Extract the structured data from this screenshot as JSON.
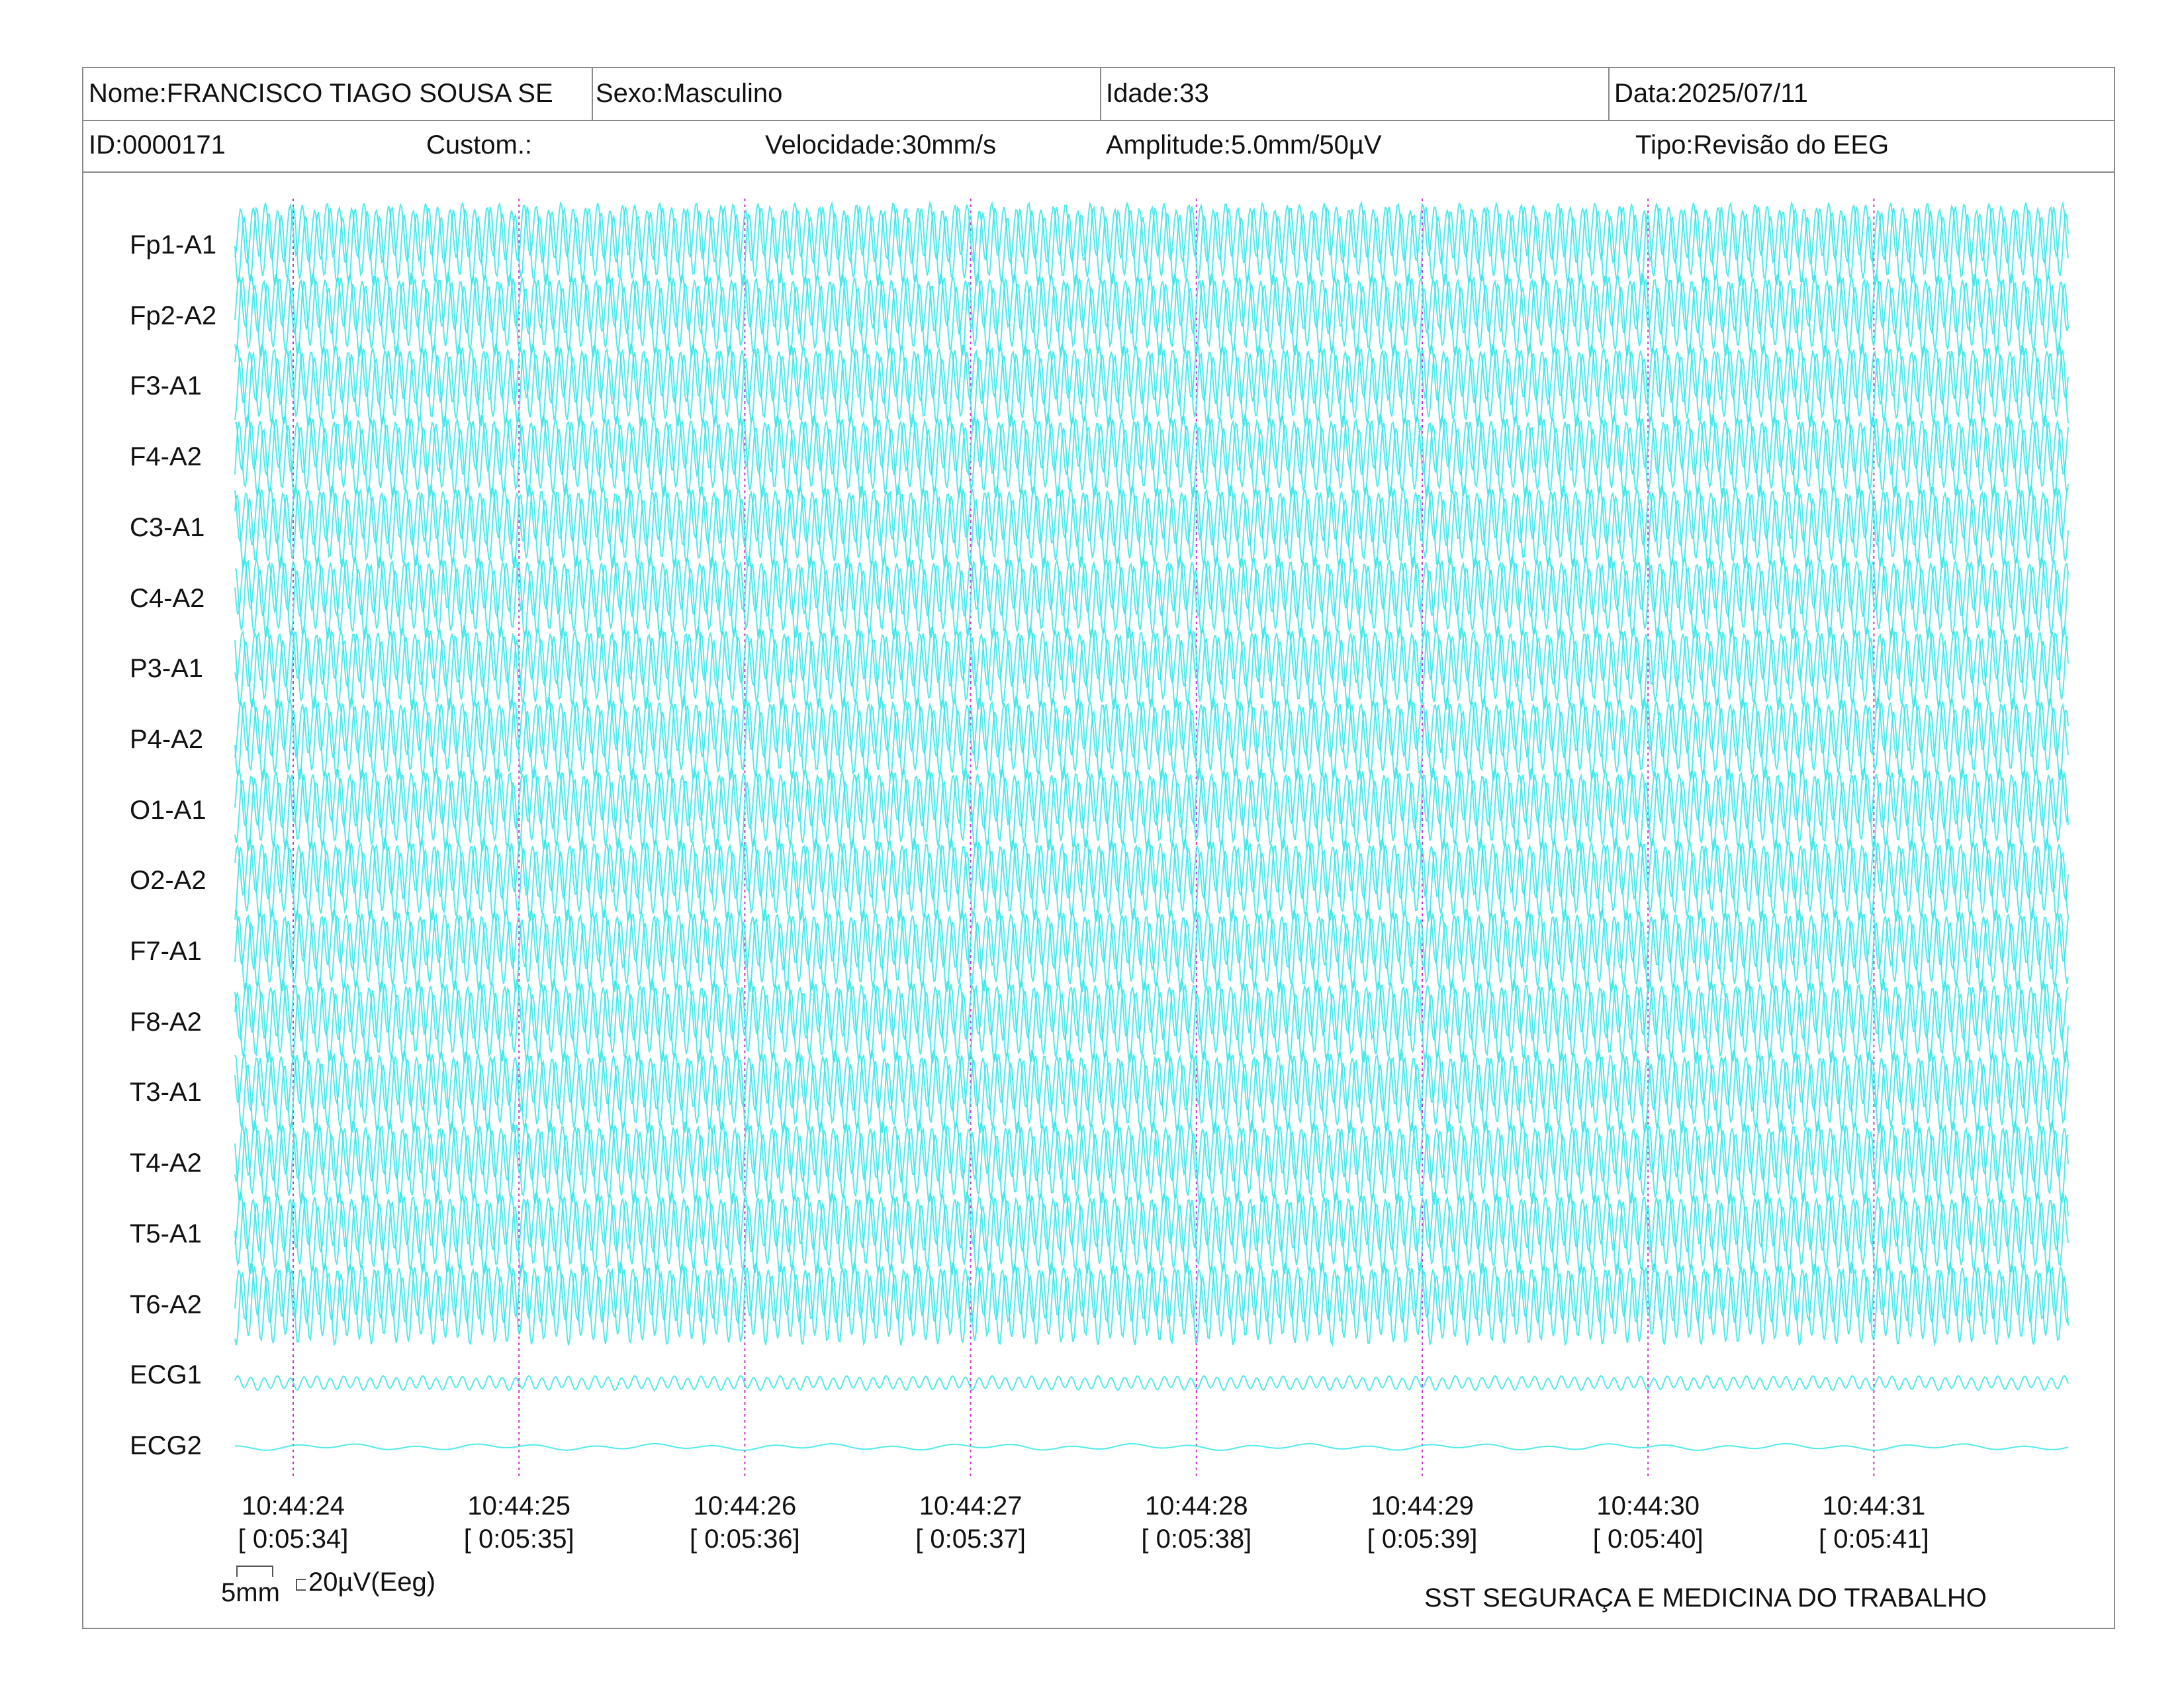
{
  "header": {
    "name": "Nome:FRANCISCO TIAGO SOUSA SE",
    "sex": "Sexo:Masculino",
    "age": "Idade:33",
    "date": "Data:2025/07/11",
    "id": "ID:0000171",
    "custom": "Custom.:",
    "speed": "Velocidade:30mm/s",
    "amplitude": "Amplitude:5.0mm/50µV",
    "type": "Tipo:Revisão do EEG"
  },
  "channels": [
    "Fp1-A1",
    "Fp2-A2",
    "F3-A1",
    "F4-A2",
    "C3-A1",
    "C4-A2",
    "P3-A1",
    "P4-A2",
    "O1-A1",
    "O2-A2",
    "F7-A1",
    "F8-A2",
    "T3-A1",
    "T4-A2",
    "T5-A1",
    "T6-A2",
    "ECG1",
    "ECG2"
  ],
  "time_marks": [
    {
      "clock": "10:44:24",
      "elapsed": "[ 0:05:34]"
    },
    {
      "clock": "10:44:25",
      "elapsed": "[ 0:05:35]"
    },
    {
      "clock": "10:44:26",
      "elapsed": "[ 0:05:36]"
    },
    {
      "clock": "10:44:27",
      "elapsed": "[ 0:05:37]"
    },
    {
      "clock": "10:44:28",
      "elapsed": "[ 0:05:38]"
    },
    {
      "clock": "10:44:29",
      "elapsed": "[ 0:05:39]"
    },
    {
      "clock": "10:44:30",
      "elapsed": "[ 0:05:40]"
    },
    {
      "clock": "10:44:31",
      "elapsed": "[ 0:05:41]"
    }
  ],
  "calibration": {
    "time_scale": "5mm",
    "amplitude_scale": "20µV(Eeg)"
  },
  "footer": {
    "organization": "SST SEGURAÇA E MEDICINA DO TRABALHO"
  },
  "colors": {
    "trace": "#33e6e8",
    "marker": "#cc33cc",
    "border": "#8a8a8a"
  }
}
